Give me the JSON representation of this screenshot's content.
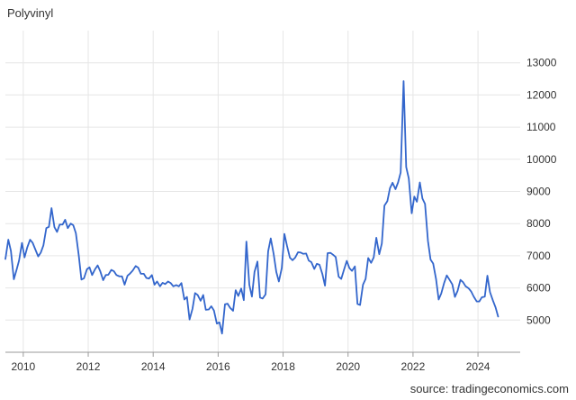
{
  "chart_data": {
    "type": "line",
    "title": "Polyvinyl",
    "source": "source: tradingeconomics.com",
    "xlabel": "",
    "ylabel": "",
    "x_ticks": [
      "2010",
      "2012",
      "2014",
      "2016",
      "2018",
      "2020",
      "2022",
      "2024"
    ],
    "y_ticks": [
      "5000",
      "6000",
      "7000",
      "8000",
      "9000",
      "10000",
      "11000",
      "12000",
      "13000"
    ],
    "xlim": [
      2009.45,
      2025.3
    ],
    "ylim": [
      4000,
      14000
    ],
    "grid": true,
    "line_color": "#3366cc",
    "series": [
      {
        "x": [
          2009.45,
          2009.54,
          2009.62,
          2009.71,
          2009.79,
          2009.87,
          2009.96,
          2010.04,
          2010.12,
          2010.21,
          2010.29,
          2010.37,
          2010.46,
          2010.54,
          2010.62,
          2010.71,
          2010.79,
          2010.87,
          2010.96,
          2011.04,
          2011.12,
          2011.21,
          2011.29,
          2011.37,
          2011.46,
          2011.54,
          2011.62,
          2011.71,
          2011.79,
          2011.87,
          2011.96,
          2012.04,
          2012.12,
          2012.21,
          2012.29,
          2012.37,
          2012.46,
          2012.54,
          2012.62,
          2012.71,
          2012.79,
          2012.87,
          2012.96,
          2013.04,
          2013.12,
          2013.21,
          2013.29,
          2013.37,
          2013.46,
          2013.54,
          2013.62,
          2013.71,
          2013.79,
          2013.87,
          2013.96,
          2014.04,
          2014.12,
          2014.21,
          2014.29,
          2014.37,
          2014.46,
          2014.54,
          2014.62,
          2014.71,
          2014.79,
          2014.87,
          2014.96,
          2015.04,
          2015.12,
          2015.21,
          2015.29,
          2015.37,
          2015.46,
          2015.54,
          2015.62,
          2015.71,
          2015.79,
          2015.87,
          2015.96,
          2016.04,
          2016.12,
          2016.21,
          2016.29,
          2016.37,
          2016.46,
          2016.54,
          2016.62,
          2016.71,
          2016.79,
          2016.87,
          2016.96,
          2017.04,
          2017.12,
          2017.21,
          2017.29,
          2017.37,
          2017.46,
          2017.54,
          2017.62,
          2017.71,
          2017.79,
          2017.87,
          2017.96,
          2018.04,
          2018.12,
          2018.21,
          2018.29,
          2018.37,
          2018.46,
          2018.54,
          2018.62,
          2018.71,
          2018.79,
          2018.87,
          2018.96,
          2019.04,
          2019.12,
          2019.21,
          2019.29,
          2019.37,
          2019.46,
          2019.54,
          2019.62,
          2019.71,
          2019.79,
          2019.87,
          2019.96,
          2020.04,
          2020.12,
          2020.21,
          2020.29,
          2020.37,
          2020.46,
          2020.54,
          2020.62,
          2020.71,
          2020.79,
          2020.87,
          2020.96,
          2021.04,
          2021.12,
          2021.21,
          2021.29,
          2021.37,
          2021.46,
          2021.54,
          2021.62,
          2021.71,
          2021.79,
          2021.87,
          2021.96,
          2022.04,
          2022.12,
          2022.21,
          2022.29,
          2022.37,
          2022.46,
          2022.54,
          2022.62,
          2022.71,
          2022.79,
          2022.87,
          2022.96,
          2023.04,
          2023.12,
          2023.21,
          2023.29,
          2023.37,
          2023.46,
          2023.54,
          2023.62,
          2023.71,
          2023.79,
          2023.87,
          2023.96,
          2024.04,
          2024.12,
          2024.21,
          2024.29,
          2024.37,
          2024.46,
          2024.54,
          2024.62
        ],
        "values": [
          6900,
          7500,
          7150,
          6270,
          6550,
          6850,
          7400,
          6950,
          7250,
          7500,
          7400,
          7200,
          6980,
          7100,
          7320,
          7860,
          7900,
          8480,
          7890,
          7740,
          7970,
          7970,
          8120,
          7860,
          8000,
          7950,
          7700,
          7000,
          6260,
          6300,
          6580,
          6640,
          6400,
          6580,
          6700,
          6520,
          6240,
          6400,
          6410,
          6560,
          6520,
          6400,
          6360,
          6360,
          6100,
          6380,
          6450,
          6540,
          6680,
          6630,
          6440,
          6440,
          6310,
          6290,
          6400,
          6100,
          6200,
          6050,
          6160,
          6120,
          6200,
          6150,
          6050,
          6090,
          6050,
          6150,
          5640,
          5720,
          5020,
          5350,
          5840,
          5780,
          5600,
          5780,
          5320,
          5330,
          5430,
          5300,
          4890,
          4930,
          4580,
          5490,
          5510,
          5380,
          5290,
          5930,
          5750,
          5980,
          5620,
          7440,
          6100,
          5730,
          6500,
          6820,
          5700,
          5670,
          5800,
          7140,
          7540,
          7050,
          6500,
          6200,
          6620,
          7680,
          7310,
          6940,
          6860,
          6940,
          7110,
          7100,
          7060,
          7070,
          6850,
          6800,
          6590,
          6750,
          6720,
          6430,
          6070,
          7080,
          7090,
          7030,
          6960,
          6350,
          6280,
          6550,
          6840,
          6620,
          6530,
          6670,
          5500,
          5470,
          6100,
          6280,
          6930,
          6780,
          6950,
          7560,
          7050,
          7380,
          8560,
          8700,
          9100,
          9270,
          9070,
          9280,
          9590,
          12430,
          9760,
          9400,
          8320,
          8840,
          8680,
          9280,
          8780,
          8610,
          7460,
          6880,
          6760,
          6270,
          5640,
          5830,
          6160,
          6390,
          6260,
          6110,
          5720,
          5900,
          6250,
          6180,
          6050,
          5990,
          5890,
          5730,
          5580,
          5580,
          5710,
          5730,
          6380,
          5870,
          5610,
          5400,
          5110
        ]
      }
    ]
  }
}
